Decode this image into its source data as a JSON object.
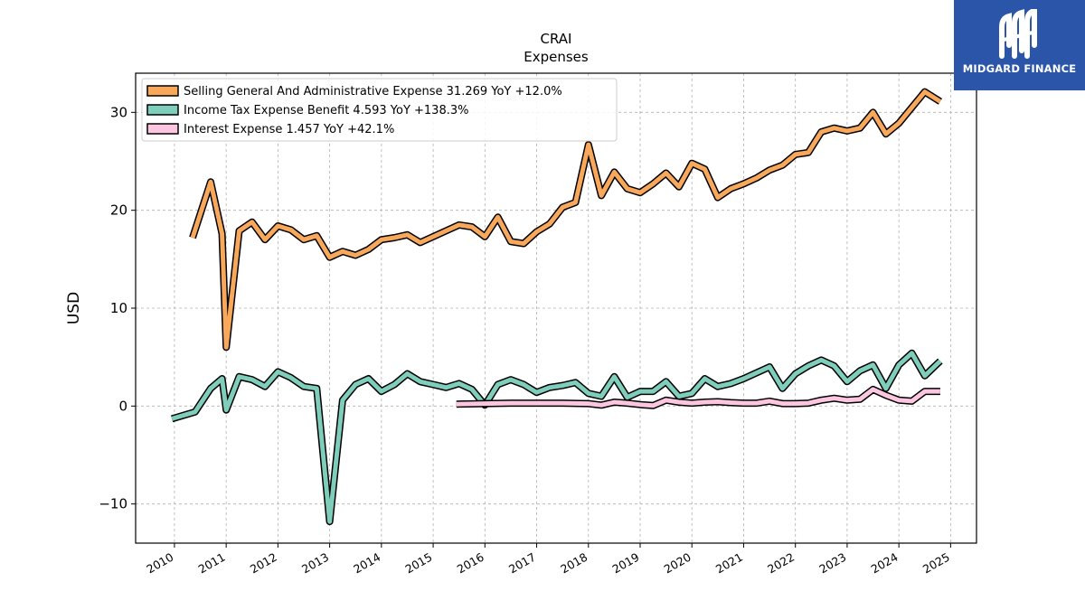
{
  "brand": {
    "name": "MIDGARD FINANCE",
    "bg_color": "#2a55a8"
  },
  "chart_data": {
    "type": "line",
    "title": "CRAI",
    "subtitle": "Expenses",
    "ylabel": "USD",
    "xlabel": "",
    "ylim": [
      -14,
      34
    ],
    "xlim": [
      2009.25,
      2025.5
    ],
    "yticks": [
      -10,
      0,
      10,
      20,
      30
    ],
    "ytick_labels": [
      "−10",
      "0",
      "10",
      "20",
      "30"
    ],
    "xticks": [
      2010,
      2011,
      2012,
      2013,
      2014,
      2015,
      2016,
      2017,
      2018,
      2019,
      2020,
      2021,
      2022,
      2023,
      2024,
      2025
    ],
    "xtick_labels": [
      "2010",
      "2011",
      "2012",
      "2013",
      "2014",
      "2015",
      "2016",
      "2017",
      "2018",
      "2019",
      "2020",
      "2021",
      "2022",
      "2023",
      "2024",
      "2025"
    ],
    "grid": true,
    "legend_position": "upper-left",
    "series": [
      {
        "name": "Selling General And Administrative Expense",
        "legend_label": "Selling General And Administrative Expense  31.269 YoY +12.0%",
        "color": "#f7a85b",
        "points": [
          [
            2010.35,
            17.2
          ],
          [
            2010.7,
            22.9
          ],
          [
            2010.92,
            17.6
          ],
          [
            2011.0,
            6.0
          ],
          [
            2011.25,
            17.9
          ],
          [
            2011.5,
            18.8
          ],
          [
            2011.75,
            17.0
          ],
          [
            2012.0,
            18.4
          ],
          [
            2012.25,
            18.0
          ],
          [
            2012.5,
            17.0
          ],
          [
            2012.75,
            17.4
          ],
          [
            2013.0,
            15.2
          ],
          [
            2013.25,
            15.8
          ],
          [
            2013.5,
            15.4
          ],
          [
            2013.75,
            16.0
          ],
          [
            2014.0,
            17.0
          ],
          [
            2014.25,
            17.2
          ],
          [
            2014.5,
            17.5
          ],
          [
            2014.75,
            16.7
          ],
          [
            2015.0,
            17.3
          ],
          [
            2015.25,
            17.9
          ],
          [
            2015.5,
            18.5
          ],
          [
            2015.75,
            18.3
          ],
          [
            2016.0,
            17.3
          ],
          [
            2016.25,
            19.3
          ],
          [
            2016.5,
            16.8
          ],
          [
            2016.75,
            16.6
          ],
          [
            2017.0,
            17.8
          ],
          [
            2017.25,
            18.6
          ],
          [
            2017.5,
            20.3
          ],
          [
            2017.75,
            20.8
          ],
          [
            2018.0,
            26.7
          ],
          [
            2018.25,
            21.5
          ],
          [
            2018.5,
            23.9
          ],
          [
            2018.75,
            22.2
          ],
          [
            2019.0,
            21.8
          ],
          [
            2019.25,
            22.7
          ],
          [
            2019.5,
            23.8
          ],
          [
            2019.75,
            22.4
          ],
          [
            2020.0,
            24.8
          ],
          [
            2020.25,
            24.2
          ],
          [
            2020.5,
            21.3
          ],
          [
            2020.75,
            22.2
          ],
          [
            2021.0,
            22.7
          ],
          [
            2021.25,
            23.3
          ],
          [
            2021.5,
            24.1
          ],
          [
            2021.75,
            24.6
          ],
          [
            2022.0,
            25.7
          ],
          [
            2022.25,
            25.9
          ],
          [
            2022.5,
            28.0
          ],
          [
            2022.75,
            28.4
          ],
          [
            2023.0,
            28.1
          ],
          [
            2023.25,
            28.4
          ],
          [
            2023.5,
            30.0
          ],
          [
            2023.75,
            27.8
          ],
          [
            2024.0,
            28.9
          ],
          [
            2024.25,
            30.5
          ],
          [
            2024.5,
            32.1
          ],
          [
            2024.8,
            31.1
          ]
        ]
      },
      {
        "name": "Income Tax Expense Benefit",
        "legend_label": "Income Tax Expense Benefit  4.593 YoY +138.3%",
        "color": "#7fcdbb",
        "points": [
          [
            2009.95,
            -1.3
          ],
          [
            2010.4,
            -0.6
          ],
          [
            2010.7,
            1.8
          ],
          [
            2010.92,
            2.8
          ],
          [
            2011.0,
            -0.4
          ],
          [
            2011.25,
            3.0
          ],
          [
            2011.5,
            2.7
          ],
          [
            2011.75,
            2.0
          ],
          [
            2012.0,
            3.5
          ],
          [
            2012.25,
            2.9
          ],
          [
            2012.5,
            2.0
          ],
          [
            2012.75,
            1.8
          ],
          [
            2013.0,
            -11.8
          ],
          [
            2013.25,
            0.6
          ],
          [
            2013.5,
            2.2
          ],
          [
            2013.75,
            2.8
          ],
          [
            2014.0,
            1.5
          ],
          [
            2014.25,
            2.2
          ],
          [
            2014.5,
            3.3
          ],
          [
            2014.75,
            2.5
          ],
          [
            2015.0,
            2.2
          ],
          [
            2015.25,
            1.9
          ],
          [
            2015.5,
            2.3
          ],
          [
            2015.75,
            1.7
          ],
          [
            2016.0,
            0.1
          ],
          [
            2016.25,
            2.2
          ],
          [
            2016.5,
            2.7
          ],
          [
            2016.75,
            2.2
          ],
          [
            2017.0,
            1.4
          ],
          [
            2017.25,
            1.9
          ],
          [
            2017.5,
            2.1
          ],
          [
            2017.75,
            2.4
          ],
          [
            2018.0,
            1.3
          ],
          [
            2018.25,
            1.0
          ],
          [
            2018.5,
            3.0
          ],
          [
            2018.75,
            0.9
          ],
          [
            2019.0,
            1.5
          ],
          [
            2019.25,
            1.5
          ],
          [
            2019.5,
            2.5
          ],
          [
            2019.75,
            1.0
          ],
          [
            2020.0,
            1.3
          ],
          [
            2020.25,
            2.8
          ],
          [
            2020.5,
            2.0
          ],
          [
            2020.75,
            2.3
          ],
          [
            2021.0,
            2.8
          ],
          [
            2021.25,
            3.4
          ],
          [
            2021.5,
            4.0
          ],
          [
            2021.75,
            1.8
          ],
          [
            2022.0,
            3.3
          ],
          [
            2022.25,
            4.1
          ],
          [
            2022.5,
            4.7
          ],
          [
            2022.75,
            4.1
          ],
          [
            2023.0,
            2.5
          ],
          [
            2023.25,
            3.6
          ],
          [
            2023.5,
            4.2
          ],
          [
            2023.75,
            1.8
          ],
          [
            2024.0,
            4.2
          ],
          [
            2024.25,
            5.4
          ],
          [
            2024.5,
            3.1
          ],
          [
            2024.8,
            4.6
          ]
        ]
      },
      {
        "name": "Interest Expense",
        "legend_label": "Interest Expense  1.457 YoY +42.1%",
        "color": "#fcc5e0",
        "points": [
          [
            2015.45,
            0.2
          ],
          [
            2016.0,
            0.25
          ],
          [
            2016.5,
            0.3
          ],
          [
            2017.0,
            0.3
          ],
          [
            2017.5,
            0.3
          ],
          [
            2018.0,
            0.25
          ],
          [
            2018.25,
            0.1
          ],
          [
            2018.5,
            0.4
          ],
          [
            2018.75,
            0.3
          ],
          [
            2019.0,
            0.15
          ],
          [
            2019.25,
            0.05
          ],
          [
            2019.5,
            0.6
          ],
          [
            2019.75,
            0.4
          ],
          [
            2020.0,
            0.3
          ],
          [
            2020.25,
            0.4
          ],
          [
            2020.5,
            0.45
          ],
          [
            2020.75,
            0.35
          ],
          [
            2021.0,
            0.3
          ],
          [
            2021.25,
            0.3
          ],
          [
            2021.5,
            0.5
          ],
          [
            2021.75,
            0.25
          ],
          [
            2022.0,
            0.25
          ],
          [
            2022.25,
            0.3
          ],
          [
            2022.5,
            0.6
          ],
          [
            2022.75,
            0.8
          ],
          [
            2023.0,
            0.6
          ],
          [
            2023.25,
            0.7
          ],
          [
            2023.5,
            1.7
          ],
          [
            2023.75,
            1.1
          ],
          [
            2024.0,
            0.6
          ],
          [
            2024.25,
            0.5
          ],
          [
            2024.5,
            1.5
          ],
          [
            2024.8,
            1.5
          ]
        ]
      }
    ]
  }
}
